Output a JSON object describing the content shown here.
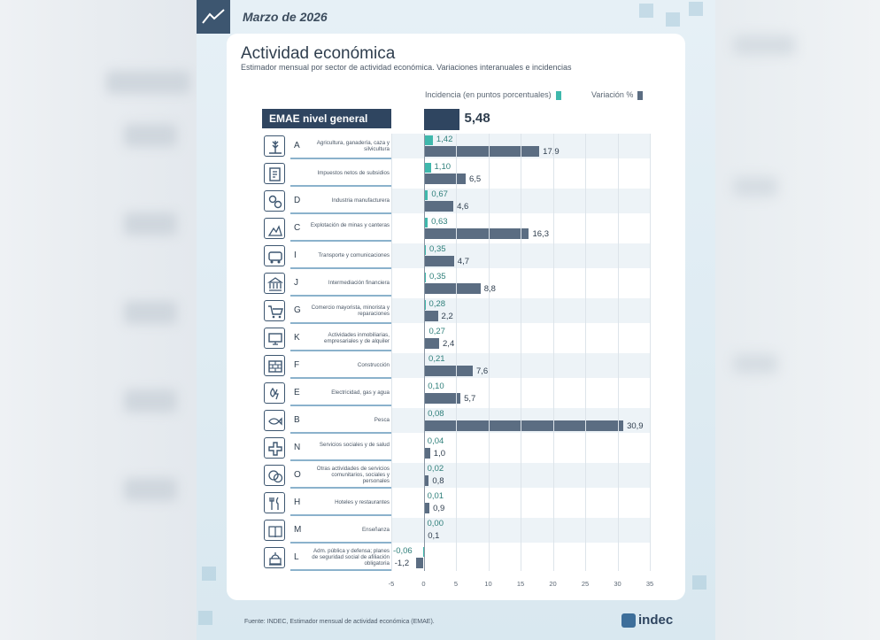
{
  "header": {
    "date": "Marzo de 2026"
  },
  "chart_data": {
    "type": "bar",
    "title": "Actividad económica",
    "subtitle": "Estimador mensual por sector de actividad económica. Variaciones interanuales e incidencias",
    "legend": {
      "incidence": "Incidencia (en puntos porcentuales)",
      "variation": "Variación %",
      "placement": "top-right"
    },
    "general": {
      "label": "EMAE nivel general",
      "value": 5.48,
      "value_label": "5,48"
    },
    "xlim": [
      -5,
      35
    ],
    "xticks": [
      "-5",
      "0",
      "5",
      "10",
      "15",
      "20",
      "25",
      "30",
      "35"
    ],
    "colors": {
      "incidence": "#3fb8ac",
      "variation": "#5b6d82",
      "general": "#2f4560"
    },
    "rows": [
      {
        "letter": "A",
        "name": "Agricultura, ganadería, caza y silvicultura",
        "icon": "wheat-icon",
        "inc": 1.42,
        "inc_label": "1,42",
        "var": 17.9,
        "var_label": "17,9"
      },
      {
        "letter": "",
        "name": "Impuestos netos de subsidios",
        "icon": "tax-document-icon",
        "inc": 1.1,
        "inc_label": "1,10",
        "var": 6.5,
        "var_label": "6,5"
      },
      {
        "letter": "D",
        "name": "Industria manufacturera",
        "icon": "gears-icon",
        "inc": 0.67,
        "inc_label": "0,67",
        "var": 4.6,
        "var_label": "4,6"
      },
      {
        "letter": "C",
        "name": "Explotación de minas y canteras",
        "icon": "mining-icon",
        "inc": 0.63,
        "inc_label": "0,63",
        "var": 16.3,
        "var_label": "16,3"
      },
      {
        "letter": "I",
        "name": "Transporte y comunicaciones",
        "icon": "bus-icon",
        "inc": 0.35,
        "inc_label": "0,35",
        "var": 4.7,
        "var_label": "4,7"
      },
      {
        "letter": "J",
        "name": "Intermediación financiera",
        "icon": "bank-icon",
        "inc": 0.35,
        "inc_label": "0,35",
        "var": 8.8,
        "var_label": "8,8"
      },
      {
        "letter": "G",
        "name": "Comercio mayorista, minorista y reparaciones",
        "icon": "cart-icon",
        "inc": 0.28,
        "inc_label": "0,28",
        "var": 2.2,
        "var_label": "2,2"
      },
      {
        "letter": "K",
        "name": "Actividades inmobiliarias, empresariales y de alquiler",
        "icon": "monitor-icon",
        "inc": 0.27,
        "inc_label": "0,27",
        "var": 2.4,
        "var_label": "2,4"
      },
      {
        "letter": "F",
        "name": "Construcción",
        "icon": "bricks-icon",
        "inc": 0.21,
        "inc_label": "0,21",
        "var": 7.6,
        "var_label": "7,6"
      },
      {
        "letter": "E",
        "name": "Electricidad, gas y agua",
        "icon": "utilities-icon",
        "inc": 0.1,
        "inc_label": "0,10",
        "var": 5.7,
        "var_label": "5,7"
      },
      {
        "letter": "B",
        "name": "Pesca",
        "icon": "fish-icon",
        "inc": 0.08,
        "inc_label": "0,08",
        "var": 30.9,
        "var_label": "30,9"
      },
      {
        "letter": "N",
        "name": "Servicios sociales y de salud",
        "icon": "health-cross-icon",
        "inc": 0.04,
        "inc_label": "0,04",
        "var": 1.0,
        "var_label": "1,0"
      },
      {
        "letter": "O",
        "name": "Otras actividades de servicios comunitarios, sociales y personales",
        "icon": "theater-masks-icon",
        "inc": 0.02,
        "inc_label": "0,02",
        "var": 0.8,
        "var_label": "0,8"
      },
      {
        "letter": "H",
        "name": "Hoteles y restaurantes",
        "icon": "cutlery-icon",
        "inc": 0.01,
        "inc_label": "0,01",
        "var": 0.9,
        "var_label": "0,9"
      },
      {
        "letter": "M",
        "name": "Enseñanza",
        "icon": "book-icon",
        "inc": 0.0,
        "inc_label": "0,00",
        "var": 0.1,
        "var_label": "0,1"
      },
      {
        "letter": "L",
        "name": "Adm. pública y defensa; planes de seguridad social de afiliación obligatoria",
        "icon": "government-icon",
        "inc": -0.06,
        "inc_label": "-0,06",
        "var": -1.2,
        "var_label": "-1,2"
      }
    ]
  },
  "footer": {
    "source": "Fuente: INDEC, Estimador mensual de actividad económica (EMAE).",
    "brand": "indec"
  }
}
